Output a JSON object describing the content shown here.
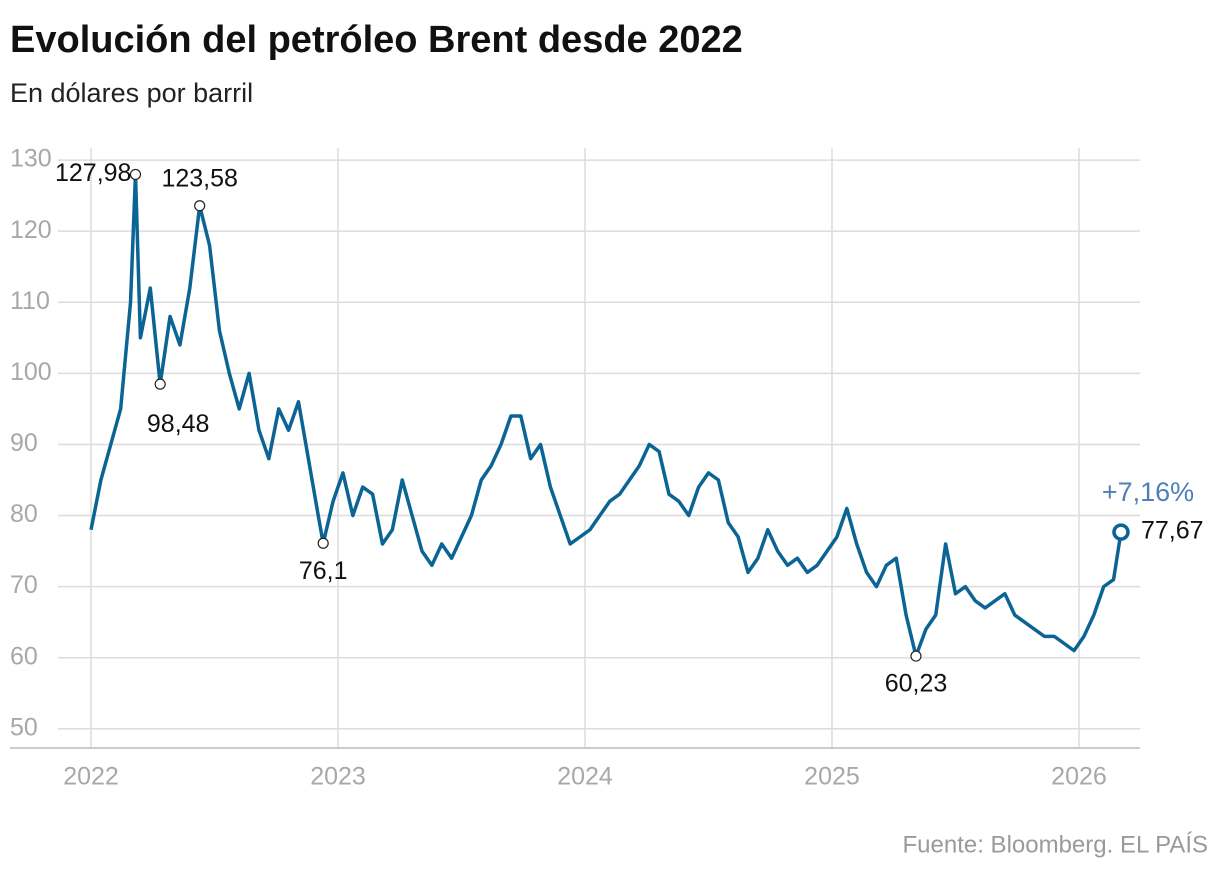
{
  "chart_data": {
    "type": "line",
    "title": "Evolución del petróleo Brent desde 2022",
    "subtitle": "En dólares por barril",
    "source": "Fuente: Bloomberg. EL PAÍS",
    "change_label": "+7,16%",
    "x": [
      2022.0,
      2022.04,
      2022.08,
      2022.12,
      2022.16,
      2022.18,
      2022.2,
      2022.24,
      2022.28,
      2022.32,
      2022.36,
      2022.4,
      2022.44,
      2022.48,
      2022.52,
      2022.56,
      2022.6,
      2022.64,
      2022.68,
      2022.72,
      2022.76,
      2022.8,
      2022.84,
      2022.88,
      2022.92,
      2022.94,
      2022.98,
      2023.02,
      2023.06,
      2023.1,
      2023.14,
      2023.18,
      2023.22,
      2023.26,
      2023.3,
      2023.34,
      2023.38,
      2023.42,
      2023.46,
      2023.5,
      2023.54,
      2023.58,
      2023.62,
      2023.66,
      2023.7,
      2023.74,
      2023.78,
      2023.82,
      2023.86,
      2023.9,
      2023.94,
      2023.98,
      2024.02,
      2024.06,
      2024.1,
      2024.14,
      2024.18,
      2024.22,
      2024.26,
      2024.3,
      2024.34,
      2024.38,
      2024.42,
      2024.46,
      2024.5,
      2024.54,
      2024.58,
      2024.62,
      2024.66,
      2024.7,
      2024.74,
      2024.78,
      2024.82,
      2024.86,
      2024.9,
      2024.94,
      2024.98,
      2025.02,
      2025.06,
      2025.1,
      2025.14,
      2025.18,
      2025.22,
      2025.26,
      2025.3,
      2025.34,
      2025.38,
      2025.42,
      2025.46,
      2025.5,
      2025.54,
      2025.58,
      2025.62,
      2025.66,
      2025.7,
      2025.74,
      2025.78,
      2025.82,
      2025.86,
      2025.9,
      2025.94,
      2025.98,
      2026.02,
      2026.06,
      2026.1,
      2026.14,
      2026.17
    ],
    "series": [
      {
        "name": "Brent",
        "color": "#0b6494",
        "values": [
          78,
          85,
          90,
          95,
          110,
          127.98,
          105,
          112,
          98.48,
          108,
          104,
          112,
          123.58,
          118,
          106,
          100,
          95,
          100,
          92,
          88,
          95,
          92,
          96,
          88,
          80,
          76.1,
          82,
          86,
          80,
          84,
          83,
          76,
          78,
          85,
          80,
          75,
          73,
          76,
          74,
          77,
          80,
          85,
          87,
          90,
          94,
          94,
          88,
          90,
          84,
          80,
          76,
          77,
          78,
          80,
          82,
          83,
          85,
          87,
          90,
          89,
          83,
          82,
          80,
          84,
          86,
          85,
          79,
          77,
          72,
          74,
          78,
          75,
          73,
          74,
          72,
          73,
          75,
          77,
          81,
          76,
          72,
          70,
          73,
          74,
          66,
          60.23,
          64,
          66,
          76,
          69,
          70,
          68,
          67,
          68,
          69,
          66,
          65,
          64,
          63,
          63,
          62,
          61,
          63,
          66,
          70,
          71,
          77.67
        ]
      }
    ],
    "annotations": [
      {
        "x": 2022.18,
        "value": 127.98,
        "label": "127,98"
      },
      {
        "x": 2022.44,
        "value": 123.58,
        "label": "123,58"
      },
      {
        "x": 2022.28,
        "value": 98.48,
        "label": "98,48"
      },
      {
        "x": 2022.94,
        "value": 76.1,
        "label": "76,1"
      },
      {
        "x": 2025.34,
        "value": 60.23,
        "label": "60,23"
      },
      {
        "x": 2026.17,
        "value": 77.67,
        "label": "77,67"
      }
    ],
    "xlim": [
      2021.672,
      2026.247
    ],
    "ylim": [
      47.3,
      131.7
    ],
    "xticks": [
      2022,
      2023,
      2024,
      2025,
      2026
    ],
    "yticks": [
      50,
      60,
      70,
      80,
      90,
      100,
      110,
      120,
      130
    ],
    "grid": true
  }
}
